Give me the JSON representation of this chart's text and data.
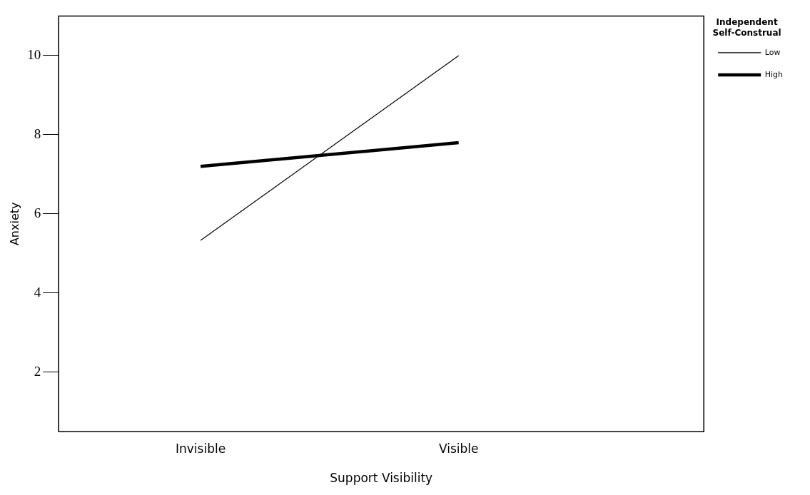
{
  "chart_data": {
    "type": "line",
    "xlabel": "Support Visibility",
    "ylabel": "Anxiety",
    "legend_title": "Independent Self-Construal",
    "categories": [
      "Invisible",
      "Visible"
    ],
    "series": [
      {
        "name": "Low",
        "color": "#000000",
        "values": [
          5.33,
          10
        ]
      },
      {
        "name": "High",
        "color": "#000000",
        "values": [
          7.2,
          7.8
        ]
      }
    ],
    "ylim": [
      0.5,
      11
    ],
    "yticks": [
      2,
      4,
      6,
      8,
      10
    ],
    "grid": false,
    "legend": "top right",
    "marker": "none",
    "line_style": "solid"
  }
}
